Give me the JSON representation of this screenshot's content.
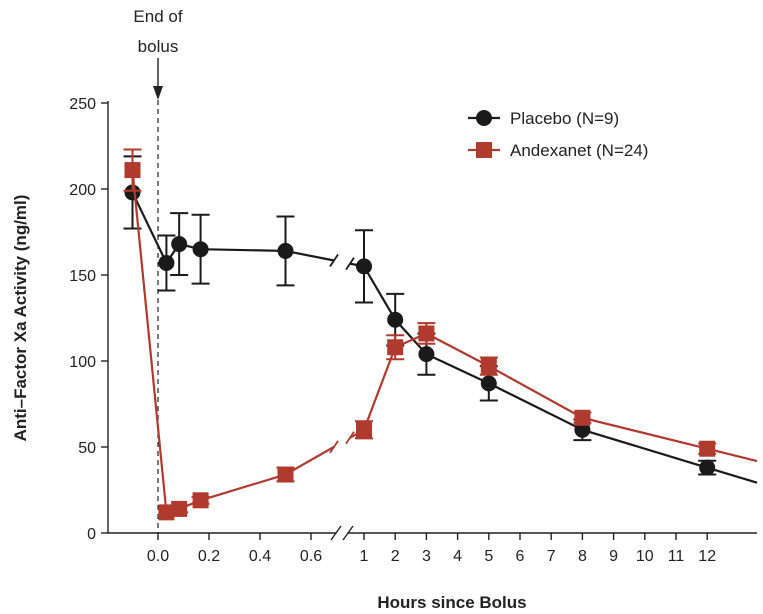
{
  "chart_data": {
    "type": "line",
    "title": "",
    "xlabel": "Hours since Bolus",
    "ylabel": "Anti–Factor Xa Activity (ng/ml)",
    "ylim": [
      0,
      250
    ],
    "y_ticks": [
      0,
      50,
      100,
      150,
      200,
      250
    ],
    "x_ticks": [
      "0.0",
      "0.2",
      "0.4",
      "0.6",
      "1",
      "2",
      "3",
      "4",
      "5",
      "6",
      "7",
      "8",
      "9",
      "10",
      "11",
      "12"
    ],
    "x_axis_break": "between 0.6 and 1",
    "grid": false,
    "legend_position": "top-right",
    "annotation": {
      "lines": [
        "End of",
        "bolus"
      ],
      "x": 0.0,
      "style": "arrow with dashed vertical line"
    },
    "series": [
      {
        "name": "Placebo (N=9)",
        "color": "#1a1a1a",
        "marker": "circle",
        "points": [
          {
            "x": -0.1,
            "y": 198,
            "err": 21
          },
          {
            "x": 0.033,
            "y": 157,
            "err": 16
          },
          {
            "x": 0.083,
            "y": 168,
            "err": 18
          },
          {
            "x": 0.167,
            "y": 165,
            "err": 20
          },
          {
            "x": 0.5,
            "y": 164,
            "err": 20
          },
          {
            "x": 1,
            "y": 155,
            "err": 21
          },
          {
            "x": 2,
            "y": 124,
            "err": 15
          },
          {
            "x": 3,
            "y": 104,
            "err": 12
          },
          {
            "x": 5,
            "y": 87,
            "err": 10
          },
          {
            "x": 8,
            "y": 60,
            "err": 6
          },
          {
            "x": 12,
            "y": 38,
            "err": 4
          }
        ]
      },
      {
        "name": "Andexanet (N=24)",
        "color": "#b03a2e",
        "marker": "square",
        "points": [
          {
            "x": -0.1,
            "y": 211,
            "err": 12
          },
          {
            "x": 0.033,
            "y": 12,
            "err": 2
          },
          {
            "x": 0.083,
            "y": 14,
            "err": 2
          },
          {
            "x": 0.167,
            "y": 19,
            "err": 2
          },
          {
            "x": 0.5,
            "y": 34,
            "err": 4
          },
          {
            "x": 1,
            "y": 60,
            "err": 5
          },
          {
            "x": 2,
            "y": 108,
            "err": 7
          },
          {
            "x": 3,
            "y": 116,
            "err": 6
          },
          {
            "x": 5,
            "y": 97,
            "err": 5
          },
          {
            "x": 8,
            "y": 67,
            "err": 3
          },
          {
            "x": 12,
            "y": 49,
            "err": 3
          }
        ]
      }
    ]
  }
}
